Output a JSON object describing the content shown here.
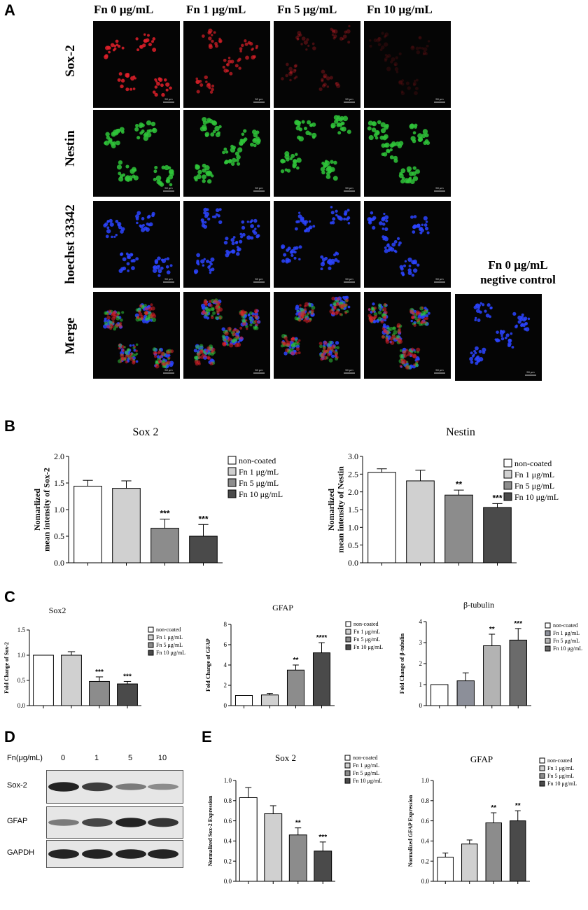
{
  "panelA": {
    "letter": "A",
    "columns": [
      "Fn 0 μg/mL",
      "Fn 1 μg/mL",
      "Fn 5 μg/mL",
      "Fn 10 μg/mL"
    ],
    "rows": [
      "Sox-2",
      "Nestin",
      "hoechst 33342",
      "Merge"
    ],
    "scale_bar": "50 μm",
    "negative_control_label": [
      "Fn 0 μg/mL",
      "negtive control"
    ],
    "colors": {
      "sox2": "#e0202a",
      "nestin": "#2fc43a",
      "hoechst": "#2b44ff"
    }
  },
  "panelB": {
    "letter": "B"
  },
  "panelC": {
    "letter": "C"
  },
  "panelD": {
    "letter": "D",
    "axis_label": "Fn(μg/mL)",
    "lanes": [
      "0",
      "1",
      "5",
      "10"
    ],
    "blots": [
      {
        "name": "Sox-2",
        "intensity": [
          0.95,
          0.8,
          0.45,
          0.35
        ]
      },
      {
        "name": "GFAP",
        "intensity": [
          0.45,
          0.75,
          0.95,
          0.85
        ]
      },
      {
        "name": "GAPDH",
        "intensity": [
          0.95,
          0.95,
          0.95,
          0.95
        ]
      }
    ]
  },
  "panelE": {
    "letter": "E"
  },
  "chart_data": [
    {
      "id": "B-sox2",
      "type": "bar",
      "title": "Sox 2",
      "ylabel": [
        "Nomarlized",
        "mean intensity of Sox-2"
      ],
      "ylim": [
        0,
        2.0
      ],
      "yticks": [
        "0.0",
        "0.5",
        "1.0",
        "1.5",
        "2.0"
      ],
      "ytick_values": [
        0,
        0.5,
        1.0,
        1.5,
        2.0
      ],
      "categories": [
        "non-coated",
        "Fn 1 μg/mL",
        "Fn 5 μg/mL",
        "Fn 10 μg/mL"
      ],
      "values": [
        1.44,
        1.4,
        0.65,
        0.5
      ],
      "errors": [
        0.11,
        0.14,
        0.17,
        0.22
      ],
      "significance": [
        "",
        "",
        "***",
        "***"
      ],
      "colors": [
        "#ffffff",
        "#d0d0d0",
        "#8c8c8c",
        "#4a4a4a"
      ],
      "legend": [
        "non-coated",
        "Fn 1 μg/mL",
        "Fn 5 μg/mL",
        "Fn 10 μg/mL"
      ]
    },
    {
      "id": "B-nestin",
      "type": "bar",
      "title": "Nestin",
      "ylabel": [
        "Nomarlized",
        "mean intensity of Nestin"
      ],
      "ylim": [
        0,
        3.0
      ],
      "yticks": [
        "0.0",
        "0.5",
        "1.0",
        "1.5",
        "2.0",
        "2.5",
        "3.0"
      ],
      "ytick_values": [
        0,
        0.5,
        1.0,
        1.5,
        2.0,
        2.5,
        3.0
      ],
      "categories": [
        "non-coated",
        "Fn 1 μg/mL",
        "Fn 5 μg/mL",
        "Fn 10 μg/mL"
      ],
      "values": [
        2.55,
        2.31,
        1.91,
        1.56
      ],
      "errors": [
        0.1,
        0.3,
        0.14,
        0.11
      ],
      "significance": [
        "",
        "",
        "**",
        "***"
      ],
      "colors": [
        "#ffffff",
        "#d0d0d0",
        "#8c8c8c",
        "#4a4a4a"
      ],
      "legend": [
        "non-coated",
        "Fn 1 μg/mL",
        "Fn 5 μg/mL",
        "Fn 10 μg/mL"
      ]
    },
    {
      "id": "C-sox2",
      "type": "bar",
      "title": "Sox2",
      "ylabel": [
        "Fold Change of Sox-2"
      ],
      "ylim": [
        0,
        1.5
      ],
      "yticks": [
        "0.0",
        "0.5",
        "1.0",
        "1.5"
      ],
      "ytick_values": [
        0,
        0.5,
        1.0,
        1.5
      ],
      "categories": [
        "non-coated",
        "Fn 1 μg/mL",
        "Fn 5 μg/mL",
        "Fn 10 μg/mL"
      ],
      "values": [
        1.0,
        1.0,
        0.48,
        0.43
      ],
      "errors": [
        0.0,
        0.07,
        0.09,
        0.05
      ],
      "significance": [
        "",
        "",
        "***",
        "***"
      ],
      "colors": [
        "#ffffff",
        "#d0d0d0",
        "#8c8c8c",
        "#4a4a4a"
      ],
      "legend": [
        "non-coated",
        "Fn 1 μg/mL",
        "Fn 5 μg/mL",
        "Fn 10 μg/mL"
      ]
    },
    {
      "id": "C-gfap",
      "type": "bar",
      "title": "GFAP",
      "ylabel": [
        "Fold Change of GFAP"
      ],
      "ylim": [
        0,
        8
      ],
      "yticks": [
        "0",
        "2",
        "4",
        "6",
        "8"
      ],
      "ytick_values": [
        0,
        2,
        4,
        6,
        8
      ],
      "categories": [
        "non-coated",
        "Fn 1 μg/mL",
        "Fn 5 μg/mL",
        "Fn 10 μg/mL"
      ],
      "values": [
        1.0,
        1.05,
        3.5,
        5.2
      ],
      "errors": [
        0.0,
        0.15,
        0.5,
        1.0
      ],
      "significance": [
        "",
        "",
        "**",
        "****"
      ],
      "colors": [
        "#ffffff",
        "#d0d0d0",
        "#8c8c8c",
        "#4a4a4a"
      ],
      "legend": [
        "non-coated",
        "Fn 1 μg/mL",
        "Fn 5 μg/mL",
        "Fn 10 μg/mL"
      ]
    },
    {
      "id": "C-btubulin",
      "type": "bar",
      "title": "β-tubulin",
      "ylabel": [
        "Fold Change of β-tubulin"
      ],
      "ylim": [
        0,
        4
      ],
      "yticks": [
        "0",
        "1",
        "2",
        "3",
        "4"
      ],
      "ytick_values": [
        0,
        1,
        2,
        3,
        4
      ],
      "categories": [
        "non-coated",
        "Fn 1 μg/mL",
        "Fn 5 μg/mL",
        "Fn 10 μg/mL"
      ],
      "values": [
        1.0,
        1.18,
        2.85,
        3.12
      ],
      "errors": [
        0.0,
        0.38,
        0.55,
        0.55
      ],
      "significance": [
        "",
        "",
        "**",
        "***"
      ],
      "colors": [
        "#ffffff",
        "#8c8f99",
        "#b3b3b3",
        "#6b6b6b"
      ],
      "legend": [
        "non-coated",
        "Fn 1 μg/mL",
        "Fn 5 μg/mL",
        "Fn 10 μg/mL"
      ]
    },
    {
      "id": "E-sox2",
      "type": "bar",
      "title": "Sox 2",
      "ylabel": [
        "Normalized Sox-2 Expression"
      ],
      "ylim": [
        0,
        1.0
      ],
      "yticks": [
        "0.0",
        "0.2",
        "0.4",
        "0.6",
        "0.8",
        "1.0"
      ],
      "ytick_values": [
        0,
        0.2,
        0.4,
        0.6,
        0.8,
        1.0
      ],
      "categories": [
        "non-coated",
        "Fn 1 μg/mL",
        "Fn 5 μg/mL",
        "Fn 10 μg/mL"
      ],
      "values": [
        0.83,
        0.67,
        0.46,
        0.3
      ],
      "errors": [
        0.1,
        0.08,
        0.07,
        0.09
      ],
      "significance": [
        "",
        "",
        "**",
        "***"
      ],
      "colors": [
        "#ffffff",
        "#d0d0d0",
        "#8c8c8c",
        "#4a4a4a"
      ],
      "legend": [
        "non-coated",
        "Fn 1 μg/mL",
        "Fn 5 μg/mL",
        "Fn 10 μg/mL"
      ]
    },
    {
      "id": "E-gfap",
      "type": "bar",
      "title": "GFAP",
      "ylabel": [
        "Normalized GFAP Expression"
      ],
      "ylim": [
        0,
        1.0
      ],
      "yticks": [
        "0.0",
        "0.2",
        "0.4",
        "0.6",
        "0.8",
        "1.0"
      ],
      "ytick_values": [
        0,
        0.2,
        0.4,
        0.6,
        0.8,
        1.0
      ],
      "categories": [
        "non-coated",
        "Fn 1 μg/mL",
        "Fn 5 μg/mL",
        "Fn 10 μg/mL"
      ],
      "values": [
        0.24,
        0.37,
        0.58,
        0.6
      ],
      "errors": [
        0.04,
        0.04,
        0.1,
        0.1
      ],
      "significance": [
        "",
        "",
        "**",
        "**"
      ],
      "colors": [
        "#ffffff",
        "#d0d0d0",
        "#8c8c8c",
        "#4a4a4a"
      ],
      "legend": [
        "non-coated",
        "Fn 1 μg/mL",
        "Fn 5 μg/mL",
        "Fn 10 μg/mL"
      ]
    }
  ]
}
